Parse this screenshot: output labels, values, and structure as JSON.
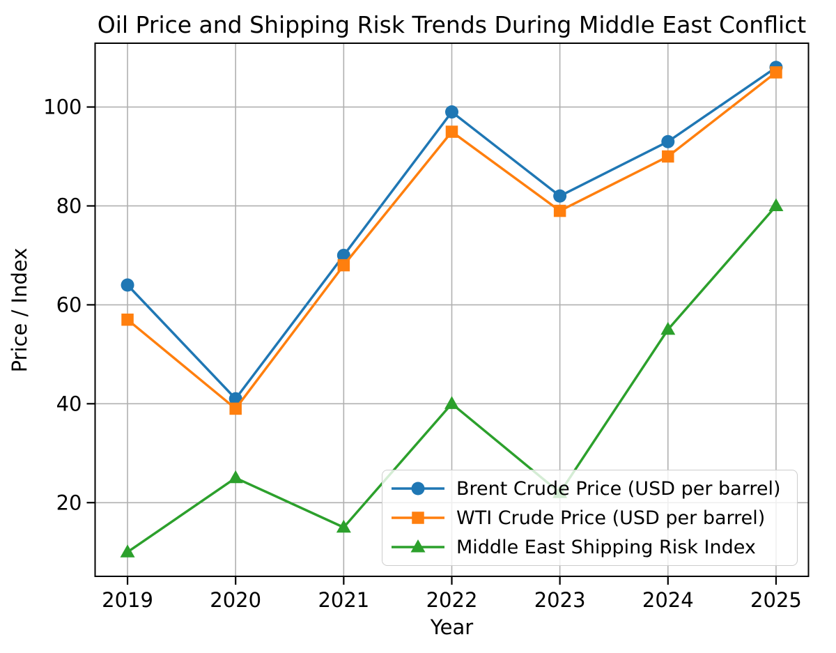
{
  "figure": {
    "title": "Oil Price and Shipping Risk Trends During Middle East Conflict"
  },
  "chart_data": {
    "type": "line",
    "title": "Oil Price and Shipping Risk Trends During Middle East Conflict",
    "xlabel": "Year",
    "ylabel": "Price / Index",
    "categories": [
      2019,
      2020,
      2021,
      2022,
      2023,
      2024,
      2025
    ],
    "x_tick_labels": [
      "2019",
      "2020",
      "2021",
      "2022",
      "2023",
      "2024",
      "2025"
    ],
    "y_ticks": [
      20,
      40,
      60,
      80,
      100
    ],
    "y_tick_labels": [
      "20",
      "40",
      "60",
      "80",
      "100"
    ],
    "xlim": [
      2018.7,
      2025.3
    ],
    "ylim": [
      5.1,
      112.9
    ],
    "grid": true,
    "grid_color": "#b0b0b0",
    "legend_position": "lower right inside",
    "series": [
      {
        "name": "Brent Crude Price (USD per barrel)",
        "color": "#1f77b4",
        "marker": "circle",
        "values": [
          64,
          41,
          70,
          99,
          82,
          93,
          108
        ]
      },
      {
        "name": "WTI Crude Price (USD per barrel)",
        "color": "#ff7f0e",
        "marker": "square",
        "values": [
          57,
          39,
          68,
          95,
          79,
          90,
          107
        ]
      },
      {
        "name": "Middle East Shipping Risk Index",
        "color": "#2ca02c",
        "marker": "triangle",
        "values": [
          10,
          25,
          15,
          40,
          22,
          55,
          80
        ]
      }
    ]
  }
}
